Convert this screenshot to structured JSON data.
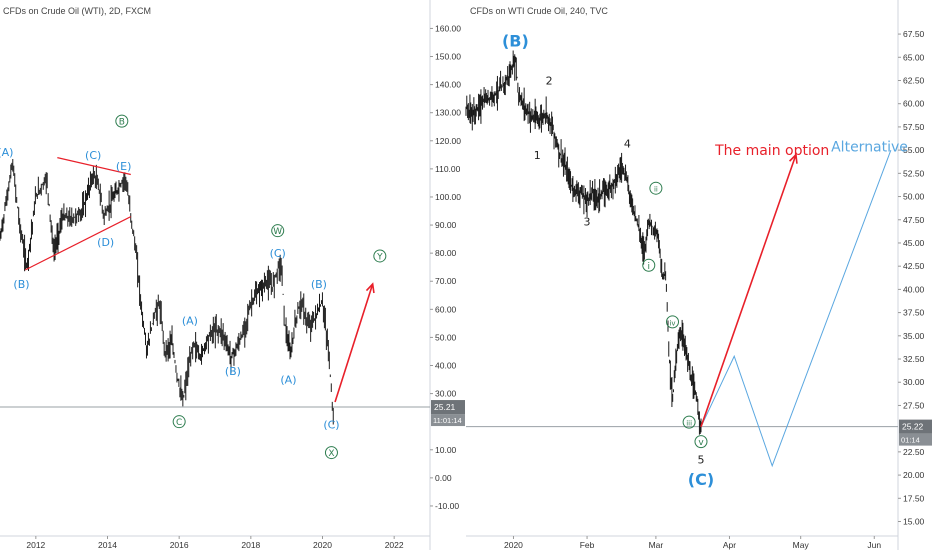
{
  "colors": {
    "wave_blue": "#2d8fd8",
    "wave_green": "#2e7d4f",
    "main_red": "#e8202a",
    "alt_blue": "#5aa7e0",
    "price_black": "#1a1a1a",
    "hline": "#9aa0a6",
    "label_bg": "#6e7378"
  },
  "chart_data": [
    {
      "type": "line",
      "title": "CFDs on Crude Oil (WTI), 2D, FXCM",
      "x_tick_labels": [
        "2012",
        "2014",
        "2016",
        "2018",
        "2020",
        "2022"
      ],
      "x_ticks": [
        2012,
        2014,
        2016,
        2018,
        2020,
        2022
      ],
      "xlim": [
        2011.0,
        2023.0
      ],
      "y_tick_labels": [
        "160.00",
        "150.00",
        "140.00",
        "130.00",
        "120.00",
        "110.00",
        "100.00",
        "90.00",
        "80.00",
        "70.00",
        "60.00",
        "50.00",
        "40.00",
        "30.00",
        "10.00",
        "0.00",
        "-10.00"
      ],
      "y_ticks": [
        160,
        150,
        140,
        130,
        120,
        110,
        100,
        90,
        80,
        70,
        60,
        50,
        40,
        30,
        10,
        0,
        -10
      ],
      "ylim": [
        -15,
        163
      ],
      "price_label": "25.21",
      "countdown_label": "11:01:14",
      "current_price": 25.21,
      "price_series": [
        [
          2011.0,
          85
        ],
        [
          2011.35,
          112
        ],
        [
          2011.55,
          90
        ],
        [
          2011.75,
          75
        ],
        [
          2012.0,
          100
        ],
        [
          2012.3,
          107
        ],
        [
          2012.5,
          80
        ],
        [
          2012.75,
          93
        ],
        [
          2013.0,
          92
        ],
        [
          2013.3,
          95
        ],
        [
          2013.6,
          108
        ],
        [
          2013.75,
          104
        ],
        [
          2013.9,
          93
        ],
        [
          2014.1,
          98
        ],
        [
          2014.35,
          104
        ],
        [
          2014.5,
          107
        ],
        [
          2014.6,
          98
        ],
        [
          2014.8,
          80
        ],
        [
          2014.95,
          60
        ],
        [
          2015.1,
          45
        ],
        [
          2015.3,
          58
        ],
        [
          2015.45,
          62
        ],
        [
          2015.6,
          45
        ],
        [
          2015.8,
          48
        ],
        [
          2015.95,
          36
        ],
        [
          2016.1,
          27
        ],
        [
          2016.25,
          38
        ],
        [
          2016.4,
          48
        ],
        [
          2016.6,
          43
        ],
        [
          2016.8,
          50
        ],
        [
          2017.0,
          53
        ],
        [
          2017.2,
          52
        ],
        [
          2017.45,
          43
        ],
        [
          2017.6,
          46
        ],
        [
          2017.8,
          52
        ],
        [
          2018.0,
          62
        ],
        [
          2018.2,
          66
        ],
        [
          2018.45,
          70
        ],
        [
          2018.6,
          68
        ],
        [
          2018.75,
          75
        ],
        [
          2018.85,
          76
        ],
        [
          2018.95,
          55
        ],
        [
          2019.1,
          43
        ],
        [
          2019.25,
          56
        ],
        [
          2019.4,
          63
        ],
        [
          2019.6,
          54
        ],
        [
          2019.75,
          56
        ],
        [
          2019.9,
          60
        ],
        [
          2020.0,
          63
        ],
        [
          2020.1,
          52
        ],
        [
          2020.18,
          44
        ],
        [
          2020.25,
          30
        ],
        [
          2020.3,
          22
        ]
      ],
      "red_arrow": [
        [
          2020.35,
          27
        ],
        [
          2021.4,
          69
        ]
      ],
      "red_trendlines": [
        [
          [
            2011.7,
            74
          ],
          [
            2014.65,
            93
          ]
        ],
        [
          [
            2012.6,
            114
          ],
          [
            2014.65,
            108
          ]
        ]
      ],
      "annotations": [
        {
          "text": "(A)",
          "x": 2011.15,
          "y": 116,
          "wave": "blue"
        },
        {
          "text": "(B)",
          "x": 2011.6,
          "y": 69,
          "wave": "blue"
        },
        {
          "text": "(C)",
          "x": 2013.6,
          "y": 115,
          "wave": "blue"
        },
        {
          "text": "(D)",
          "x": 2013.95,
          "y": 84,
          "wave": "blue"
        },
        {
          "text": "(E)",
          "x": 2014.45,
          "y": 111,
          "wave": "blue"
        },
        {
          "text": "B",
          "x": 2014.4,
          "y": 127,
          "wave": "green_circle"
        },
        {
          "text": "(A)",
          "x": 2016.3,
          "y": 56,
          "wave": "blue"
        },
        {
          "text": "(B)",
          "x": 2017.5,
          "y": 38,
          "wave": "blue"
        },
        {
          "text": "C",
          "x": 2016.0,
          "y": 20,
          "wave": "green_circle"
        },
        {
          "text": "W",
          "x": 2018.75,
          "y": 88,
          "wave": "green_circle"
        },
        {
          "text": "(C)",
          "x": 2018.75,
          "y": 80,
          "wave": "blue"
        },
        {
          "text": "(A)",
          "x": 2019.05,
          "y": 35,
          "wave": "blue"
        },
        {
          "text": "(B)",
          "x": 2019.9,
          "y": 69,
          "wave": "blue"
        },
        {
          "text": "(C)",
          "x": 2020.25,
          "y": 19,
          "wave": "blue"
        },
        {
          "text": "X",
          "x": 2020.25,
          "y": 9,
          "wave": "green_circle"
        },
        {
          "text": "Y",
          "x": 2021.6,
          "y": 79,
          "wave": "green_circle"
        }
      ]
    },
    {
      "type": "line",
      "title": "CFDs on WTI Crude Oil, 240, TVC",
      "x_tick_labels": [
        "2020",
        "Feb",
        "Mar",
        "Apr",
        "May",
        "Jun"
      ],
      "x_ticks": [
        0,
        31,
        60,
        91,
        121,
        152
      ],
      "xlim": [
        -20,
        162
      ],
      "y_tick_labels": [
        "67.50",
        "65.00",
        "62.50",
        "60.00",
        "57.50",
        "55.00",
        "52.50",
        "50.00",
        "47.50",
        "45.00",
        "42.50",
        "40.00",
        "37.50",
        "35.00",
        "32.50",
        "30.00",
        "27.50",
        "22.50",
        "20.00",
        "17.50",
        "15.00"
      ],
      "y_ticks": [
        67.5,
        65,
        62.5,
        60,
        57.5,
        55,
        52.5,
        50,
        47.5,
        45,
        42.5,
        40,
        37.5,
        35,
        32.5,
        30,
        27.5,
        22.5,
        20,
        17.5,
        15
      ],
      "ylim": [
        14.3,
        68.8
      ],
      "price_label": "25.22",
      "countdown_label": "01:14",
      "current_price": 25.22,
      "price_series": [
        [
          -20,
          59.5
        ],
        [
          -17,
          58.8
        ],
        [
          -13,
          60.2
        ],
        [
          -8,
          61.0
        ],
        [
          -4,
          62.0
        ],
        [
          -1,
          63.5
        ],
        [
          1,
          64.8
        ],
        [
          2,
          61.0
        ],
        [
          5,
          59.5
        ],
        [
          8,
          58.5
        ],
        [
          11,
          58.3
        ],
        [
          14,
          59.0
        ],
        [
          17,
          57.0
        ],
        [
          19,
          55.0
        ],
        [
          22,
          53.0
        ],
        [
          25,
          50.8
        ],
        [
          28,
          50.5
        ],
        [
          31,
          49.5
        ],
        [
          33,
          50.5
        ],
        [
          35,
          49.8
        ],
        [
          38,
          50.5
        ],
        [
          41,
          51.0
        ],
        [
          44,
          52.5
        ],
        [
          46,
          53.3
        ],
        [
          48,
          51.5
        ],
        [
          50,
          49.0
        ],
        [
          52,
          47.5
        ],
        [
          55,
          44.0
        ],
        [
          57,
          47.5
        ],
        [
          59,
          46.5
        ],
        [
          61,
          45.5
        ],
        [
          63,
          41.0
        ],
        [
          64,
          42.5
        ],
        [
          66,
          31.0
        ],
        [
          67,
          28.0
        ],
        [
          69,
          34.0
        ],
        [
          71,
          35.5
        ],
        [
          73,
          33.0
        ],
        [
          75,
          30.0
        ],
        [
          77,
          28.5
        ],
        [
          79,
          25.2
        ]
      ],
      "red_arrow": [
        [
          79,
          25.2
        ],
        [
          119,
          54.5
        ]
      ],
      "alt_path": [
        [
          79,
          25.2
        ],
        [
          93,
          32.8
        ],
        [
          109,
          21.0
        ],
        [
          159,
          55.0
        ]
      ],
      "annotations": [
        {
          "text": "(B)",
          "x": 0.8,
          "y": 66.8,
          "wave": "blue_big"
        },
        {
          "text": "2",
          "x": 15,
          "y": 62.5,
          "wave": "black"
        },
        {
          "text": "1",
          "x": 10,
          "y": 54.5,
          "wave": "black"
        },
        {
          "text": "4",
          "x": 48,
          "y": 55.7,
          "wave": "black"
        },
        {
          "text": "3",
          "x": 31,
          "y": 47.3,
          "wave": "black"
        },
        {
          "text": "ii",
          "x": 60,
          "y": 50.9,
          "wave": "green_circle"
        },
        {
          "text": "i",
          "x": 57,
          "y": 42.6,
          "wave": "green_circle"
        },
        {
          "text": "iv",
          "x": 67,
          "y": 36.5,
          "wave": "green_circle"
        },
        {
          "text": "iii",
          "x": 74,
          "y": 25.7,
          "wave": "green_circle"
        },
        {
          "text": "v",
          "x": 79,
          "y": 23.6,
          "wave": "green_circle"
        },
        {
          "text": "5",
          "x": 79,
          "y": 21.7,
          "wave": "black"
        },
        {
          "text": "(C)",
          "x": 79,
          "y": 19.6,
          "wave": "blue_big"
        },
        {
          "text": "The main option",
          "x": 109,
          "y": 55.0,
          "wave": "red_text"
        },
        {
          "text": "Alternative",
          "x": 150,
          "y": 55.4,
          "wave": "blue_text"
        }
      ]
    }
  ]
}
